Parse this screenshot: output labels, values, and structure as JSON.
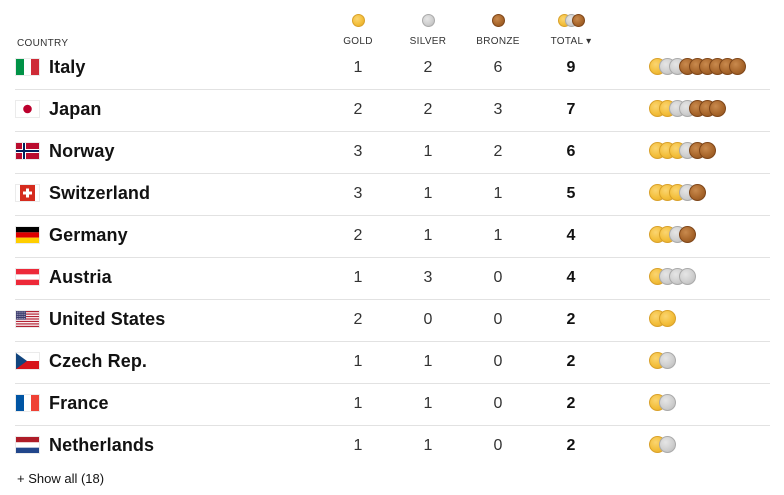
{
  "header": {
    "country": "COUNTRY",
    "gold": "GOLD",
    "silver": "SILVER",
    "bronze": "BRONZE",
    "total": "TOTAL ▾"
  },
  "colors": {
    "gold": "#f3bf3c",
    "silver": "#cfcfcf",
    "bronze": "#a9672c",
    "divider": "#e2e2e2"
  },
  "rows": [
    {
      "country": "Italy",
      "flag": "italy-flag-icon",
      "gold": "1",
      "silver": "2",
      "bronze": "6",
      "total": "9"
    },
    {
      "country": "Japan",
      "flag": "japan-flag-icon",
      "gold": "2",
      "silver": "2",
      "bronze": "3",
      "total": "7"
    },
    {
      "country": "Norway",
      "flag": "norway-flag-icon",
      "gold": "3",
      "silver": "1",
      "bronze": "2",
      "total": "6"
    },
    {
      "country": "Switzerland",
      "flag": "switzerland-flag-icon",
      "gold": "3",
      "silver": "1",
      "bronze": "1",
      "total": "5"
    },
    {
      "country": "Germany",
      "flag": "germany-flag-icon",
      "gold": "2",
      "silver": "1",
      "bronze": "1",
      "total": "4"
    },
    {
      "country": "Austria",
      "flag": "austria-flag-icon",
      "gold": "1",
      "silver": "3",
      "bronze": "0",
      "total": "4"
    },
    {
      "country": "United States",
      "flag": "united-states-flag-icon",
      "gold": "2",
      "silver": "0",
      "bronze": "0",
      "total": "2"
    },
    {
      "country": "Czech Rep.",
      "flag": "czech-republic-flag-icon",
      "gold": "1",
      "silver": "1",
      "bronze": "0",
      "total": "2"
    },
    {
      "country": "France",
      "flag": "france-flag-icon",
      "gold": "1",
      "silver": "1",
      "bronze": "0",
      "total": "2"
    },
    {
      "country": "Netherlands",
      "flag": "netherlands-flag-icon",
      "gold": "1",
      "silver": "1",
      "bronze": "0",
      "total": "2"
    }
  ],
  "footer": {
    "show_all": "+ Show all (18)"
  }
}
